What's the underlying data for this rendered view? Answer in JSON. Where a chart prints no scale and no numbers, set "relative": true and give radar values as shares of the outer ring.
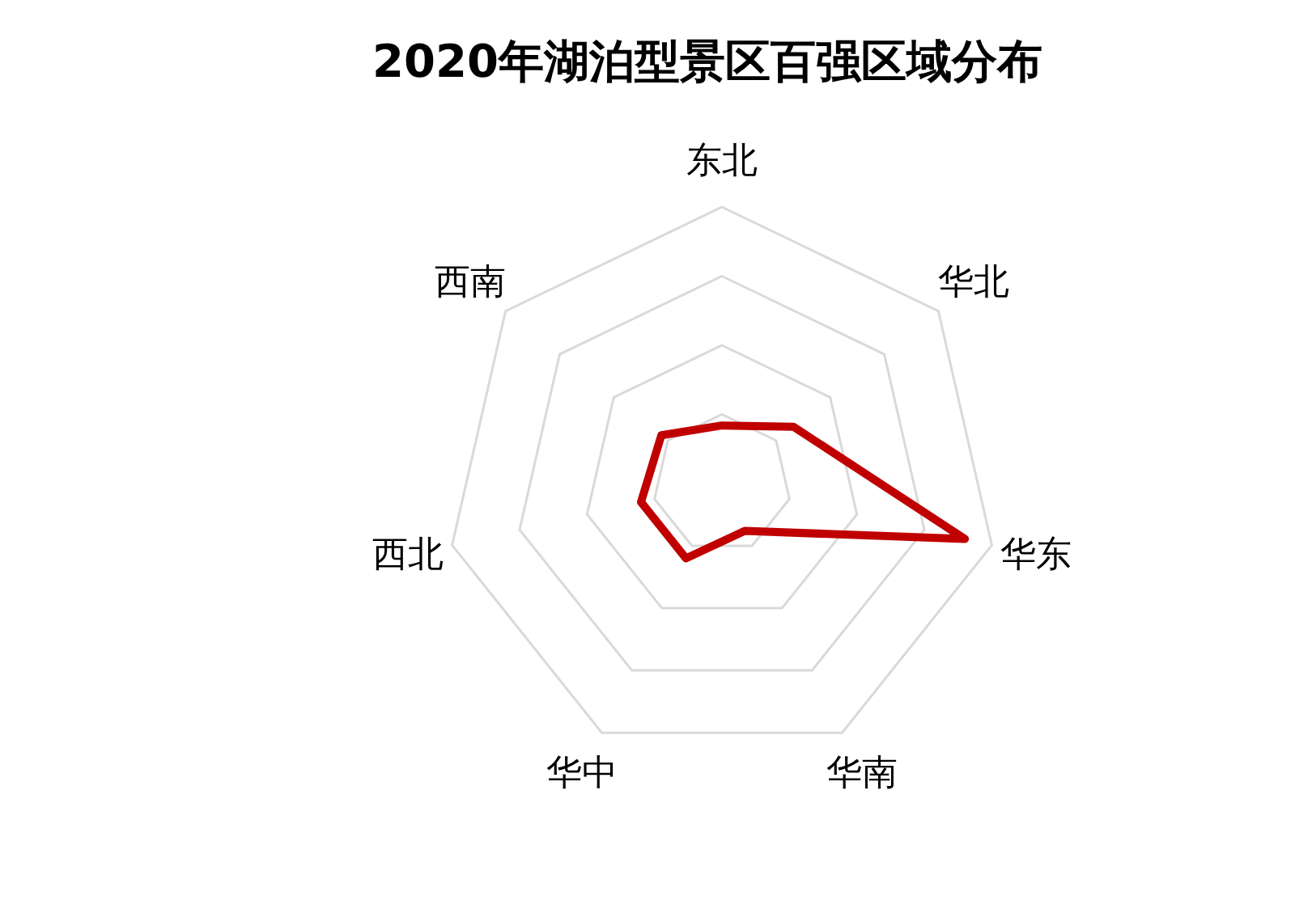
{
  "chart_data": {
    "type": "radar",
    "title": "2020年湖泊型景区百强区域分布",
    "categories": [
      "东北",
      "华北",
      "华东",
      "华南",
      "华中",
      "西北",
      "西南"
    ],
    "relative": true,
    "grid": true,
    "series": [
      {
        "color": "#c00000",
        "values": [
          0.21,
          0.33,
          0.9,
          0.19,
          0.3,
          0.3,
          0.28
        ]
      }
    ]
  }
}
